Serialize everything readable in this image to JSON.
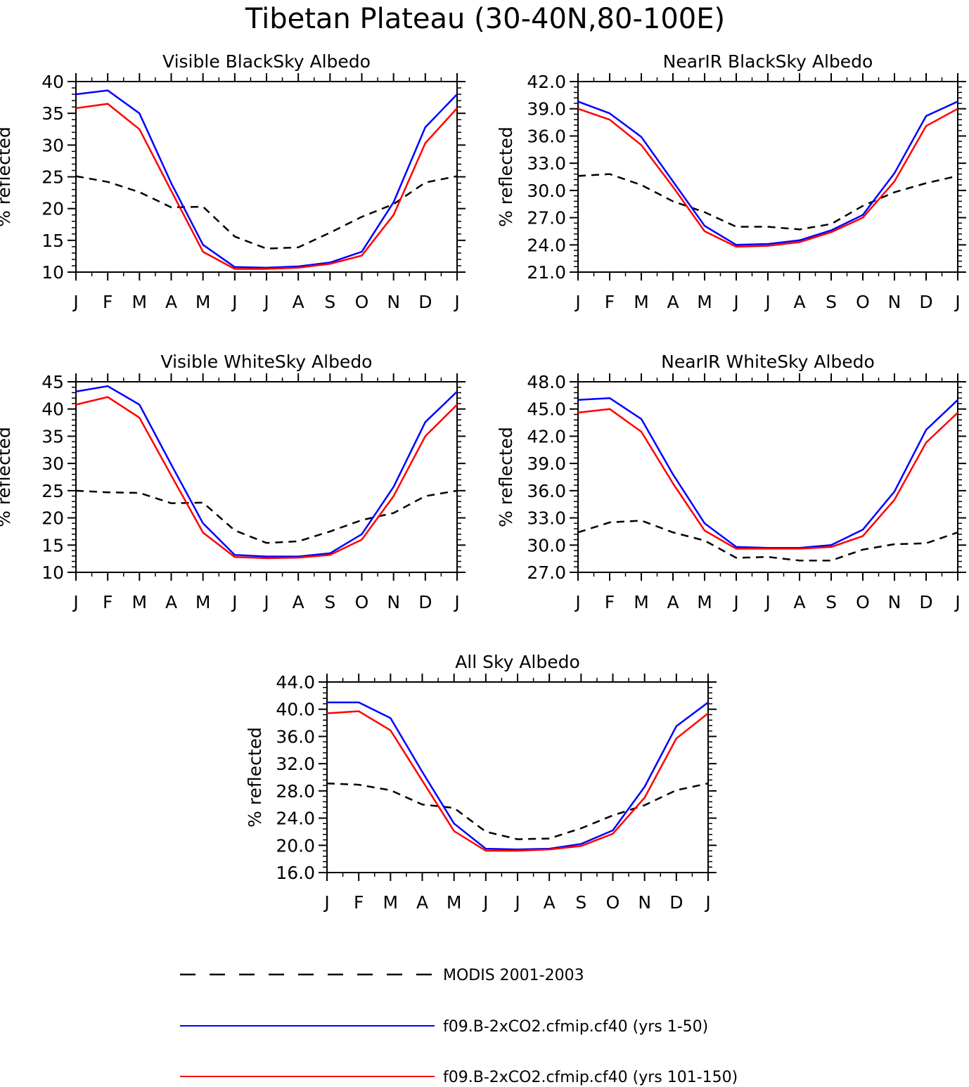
{
  "figure": {
    "title": "Tibetan Plateau (30-40N,80-100E)"
  },
  "colors": {
    "modis": "#000000",
    "run1": "#0000ff",
    "run2": "#ff0000"
  },
  "legend": {
    "position": "bottom-center",
    "entries": [
      {
        "key": "modis",
        "label": "MODIS 2001-2003",
        "style": "dashed"
      },
      {
        "key": "run1",
        "label": "f09.B-2xCO2.cfmip.cf40 (yrs 1-50)",
        "style": "solid"
      },
      {
        "key": "run2",
        "label": "f09.B-2xCO2.cfmip.cf40 (yrs 101-150)",
        "style": "solid"
      }
    ]
  },
  "chart_data": [
    {
      "type": "line",
      "title": "Visible BlackSky Albedo",
      "ylabel": "% reflected",
      "categories": [
        "J",
        "F",
        "M",
        "A",
        "M",
        "J",
        "J",
        "A",
        "S",
        "O",
        "N",
        "D",
        "J"
      ],
      "ylim": [
        10,
        40
      ],
      "yticks": [
        "10",
        "15",
        "20",
        "25",
        "30",
        "35",
        "40"
      ],
      "series": [
        {
          "key": "modis",
          "name": "MODIS 2001-2003",
          "values": [
            25.1,
            24.2,
            22.6,
            20.2,
            20.3,
            15.6,
            13.7,
            13.9,
            16.2,
            18.7,
            20.7,
            24.1,
            25.1
          ]
        },
        {
          "key": "run1",
          "name": "f09.B-2xCO2.cfmip.cf40 (yrs 1-50)",
          "values": [
            38.0,
            38.6,
            35.0,
            24.0,
            14.3,
            10.8,
            10.7,
            10.9,
            11.5,
            13.2,
            21.0,
            32.8,
            38.0
          ]
        },
        {
          "key": "run2",
          "name": "f09.B-2xCO2.cfmip.cf40 (yrs 101-150)",
          "values": [
            35.8,
            36.5,
            32.5,
            22.8,
            13.2,
            10.5,
            10.5,
            10.7,
            11.3,
            12.6,
            19.0,
            30.3,
            35.8
          ]
        }
      ]
    },
    {
      "type": "line",
      "title": "NearIR BlackSky Albedo",
      "ylabel": "% reflected",
      "categories": [
        "J",
        "F",
        "M",
        "A",
        "M",
        "J",
        "J",
        "A",
        "S",
        "O",
        "N",
        "D",
        "J"
      ],
      "ylim": [
        21,
        42
      ],
      "yticks": [
        "21.0",
        "24.0",
        "27.0",
        "30.0",
        "33.0",
        "36.0",
        "39.0",
        "42.0"
      ],
      "series": [
        {
          "key": "modis",
          "name": "MODIS 2001-2003",
          "values": [
            31.6,
            31.8,
            30.6,
            28.8,
            27.6,
            26.0,
            26.0,
            25.7,
            26.3,
            28.3,
            29.8,
            30.8,
            31.6
          ]
        },
        {
          "key": "run1",
          "name": "f09.B-2xCO2.cfmip.cf40 (yrs 1-50)",
          "values": [
            39.8,
            38.5,
            35.9,
            31.0,
            26.1,
            24.0,
            24.1,
            24.5,
            25.6,
            27.3,
            31.9,
            38.2,
            39.8
          ]
        },
        {
          "key": "run2",
          "name": "f09.B-2xCO2.cfmip.cf40 (yrs 101-150)",
          "values": [
            39.0,
            37.8,
            35.0,
            30.4,
            25.5,
            23.8,
            23.9,
            24.3,
            25.4,
            27.0,
            31.0,
            37.1,
            39.0
          ]
        }
      ]
    },
    {
      "type": "line",
      "title": "Visible WhiteSky Albedo",
      "ylabel": "% reflected",
      "categories": [
        "J",
        "F",
        "M",
        "A",
        "M",
        "J",
        "J",
        "A",
        "S",
        "O",
        "N",
        "D",
        "J"
      ],
      "ylim": [
        10,
        45
      ],
      "yticks": [
        "10",
        "15",
        "20",
        "25",
        "30",
        "35",
        "40",
        "45"
      ],
      "series": [
        {
          "key": "modis",
          "name": "MODIS 2001-2003",
          "values": [
            25.0,
            24.7,
            24.6,
            22.7,
            22.8,
            17.7,
            15.4,
            15.7,
            17.5,
            19.6,
            20.9,
            24.0,
            25.0
          ]
        },
        {
          "key": "run1",
          "name": "f09.B-2xCO2.cfmip.cf40 (yrs 1-50)",
          "values": [
            43.2,
            44.2,
            40.8,
            29.8,
            19.0,
            13.2,
            12.9,
            12.9,
            13.5,
            17.0,
            25.7,
            37.6,
            43.2
          ]
        },
        {
          "key": "run2",
          "name": "f09.B-2xCO2.cfmip.cf40 (yrs 101-150)",
          "values": [
            40.8,
            42.2,
            38.4,
            27.8,
            17.3,
            12.8,
            12.6,
            12.7,
            13.2,
            16.0,
            24.0,
            35.0,
            40.8
          ]
        }
      ]
    },
    {
      "type": "line",
      "title": "NearIR WhiteSky Albedo",
      "ylabel": "% reflected",
      "categories": [
        "J",
        "F",
        "M",
        "A",
        "M",
        "J",
        "J",
        "A",
        "S",
        "O",
        "N",
        "D",
        "J"
      ],
      "ylim": [
        27,
        48
      ],
      "yticks": [
        "27.0",
        "30.0",
        "33.0",
        "36.0",
        "39.0",
        "42.0",
        "45.0",
        "48.0"
      ],
      "series": [
        {
          "key": "modis",
          "name": "MODIS 2001-2003",
          "values": [
            31.4,
            32.5,
            32.7,
            31.4,
            30.5,
            28.6,
            28.7,
            28.3,
            28.3,
            29.5,
            30.1,
            30.2,
            31.4
          ]
        },
        {
          "key": "run1",
          "name": "f09.B-2xCO2.cfmip.cf40 (yrs 1-50)",
          "values": [
            46.0,
            46.2,
            43.9,
            37.8,
            32.4,
            29.8,
            29.7,
            29.7,
            30.0,
            31.7,
            35.9,
            42.7,
            46.0
          ]
        },
        {
          "key": "run2",
          "name": "f09.B-2xCO2.cfmip.cf40 (yrs 101-150)",
          "values": [
            44.6,
            45.0,
            42.5,
            36.8,
            31.6,
            29.6,
            29.6,
            29.6,
            29.8,
            31.0,
            35.0,
            41.3,
            44.6
          ]
        }
      ]
    },
    {
      "type": "line",
      "title": "All Sky Albedo",
      "ylabel": "% reflected",
      "categories": [
        "J",
        "F",
        "M",
        "A",
        "M",
        "J",
        "J",
        "A",
        "S",
        "O",
        "N",
        "D",
        "J"
      ],
      "ylim": [
        16,
        44
      ],
      "yticks": [
        "16.0",
        "20.0",
        "24.0",
        "28.0",
        "32.0",
        "36.0",
        "40.0",
        "44.0"
      ],
      "series": [
        {
          "key": "modis",
          "name": "MODIS 2001-2003",
          "values": [
            29.1,
            28.9,
            28.1,
            26.0,
            25.5,
            22.0,
            20.9,
            21.0,
            22.5,
            24.4,
            25.9,
            28.1,
            29.1
          ]
        },
        {
          "key": "run1",
          "name": "f09.B-2xCO2.cfmip.cf40 (yrs 1-50)",
          "values": [
            41.0,
            41.0,
            38.7,
            30.8,
            23.2,
            19.5,
            19.4,
            19.5,
            20.2,
            22.2,
            28.6,
            37.5,
            41.0
          ]
        },
        {
          "key": "run2",
          "name": "f09.B-2xCO2.cfmip.cf40 (yrs 101-150)",
          "values": [
            39.4,
            39.7,
            36.9,
            29.5,
            22.1,
            19.2,
            19.2,
            19.4,
            19.9,
            21.7,
            27.0,
            35.7,
            39.4
          ]
        }
      ]
    }
  ]
}
